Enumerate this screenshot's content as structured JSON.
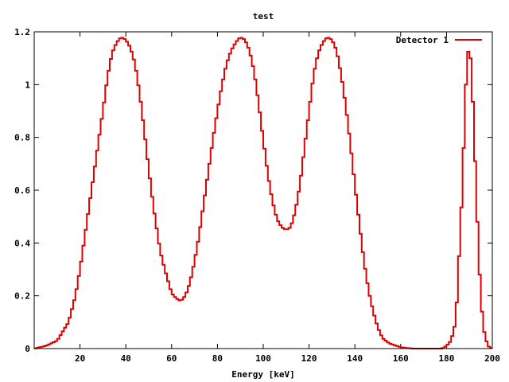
{
  "chart_data": {
    "type": "line",
    "title": "test",
    "xlabel": "Energy [keV]",
    "ylabel": "",
    "xlim": [
      0,
      200
    ],
    "ylim": [
      0,
      1.2
    ],
    "x_ticks": [
      20,
      40,
      60,
      80,
      100,
      120,
      140,
      160,
      180,
      200
    ],
    "y_ticks": [
      0,
      0.2,
      0.4,
      0.6,
      0.8,
      1,
      1.2
    ],
    "grid": false,
    "legend_position": "top-right",
    "colors": {
      "series": "#dd0000",
      "axes": "#000000"
    },
    "series": [
      {
        "name": "Detector 1",
        "style": "steps",
        "x": [
          0,
          5,
          10,
          15,
          18,
          20,
          22,
          25,
          27,
          30,
          32,
          34,
          36,
          38,
          40,
          42,
          44,
          46,
          48,
          50,
          52,
          55,
          57,
          60,
          62,
          64,
          66,
          68,
          70,
          72,
          74,
          76,
          78,
          80,
          82,
          84,
          86,
          88,
          90,
          92,
          94,
          96,
          98,
          100,
          102,
          104,
          106,
          108,
          110,
          112,
          114,
          116,
          118,
          120,
          122,
          124,
          126,
          128,
          130,
          132,
          134,
          136,
          138,
          140,
          142,
          144,
          146,
          148,
          150,
          152,
          155,
          160,
          165,
          170,
          175,
          178,
          180,
          182,
          184,
          185,
          186,
          187,
          188,
          189,
          190,
          191,
          192,
          193,
          194,
          195,
          196,
          198,
          200
        ],
        "y": [
          0.0,
          0.01,
          0.03,
          0.1,
          0.2,
          0.3,
          0.42,
          0.6,
          0.72,
          0.9,
          1.03,
          1.12,
          1.16,
          1.18,
          1.17,
          1.14,
          1.08,
          0.97,
          0.83,
          0.68,
          0.54,
          0.37,
          0.3,
          0.21,
          0.19,
          0.18,
          0.2,
          0.25,
          0.33,
          0.43,
          0.55,
          0.67,
          0.79,
          0.9,
          1.0,
          1.08,
          1.13,
          1.16,
          1.18,
          1.17,
          1.13,
          1.05,
          0.93,
          0.79,
          0.66,
          0.56,
          0.49,
          0.46,
          0.45,
          0.46,
          0.52,
          0.62,
          0.76,
          0.9,
          1.04,
          1.12,
          1.16,
          1.18,
          1.17,
          1.13,
          1.04,
          0.92,
          0.78,
          0.62,
          0.47,
          0.33,
          0.22,
          0.14,
          0.08,
          0.04,
          0.02,
          0.005,
          0.0,
          0.0,
          0.0,
          0.0,
          0.01,
          0.03,
          0.1,
          0.25,
          0.45,
          0.62,
          0.9,
          1.1,
          1.15,
          1.05,
          0.82,
          0.6,
          0.36,
          0.2,
          0.08,
          0.01,
          0.0
        ]
      }
    ]
  }
}
